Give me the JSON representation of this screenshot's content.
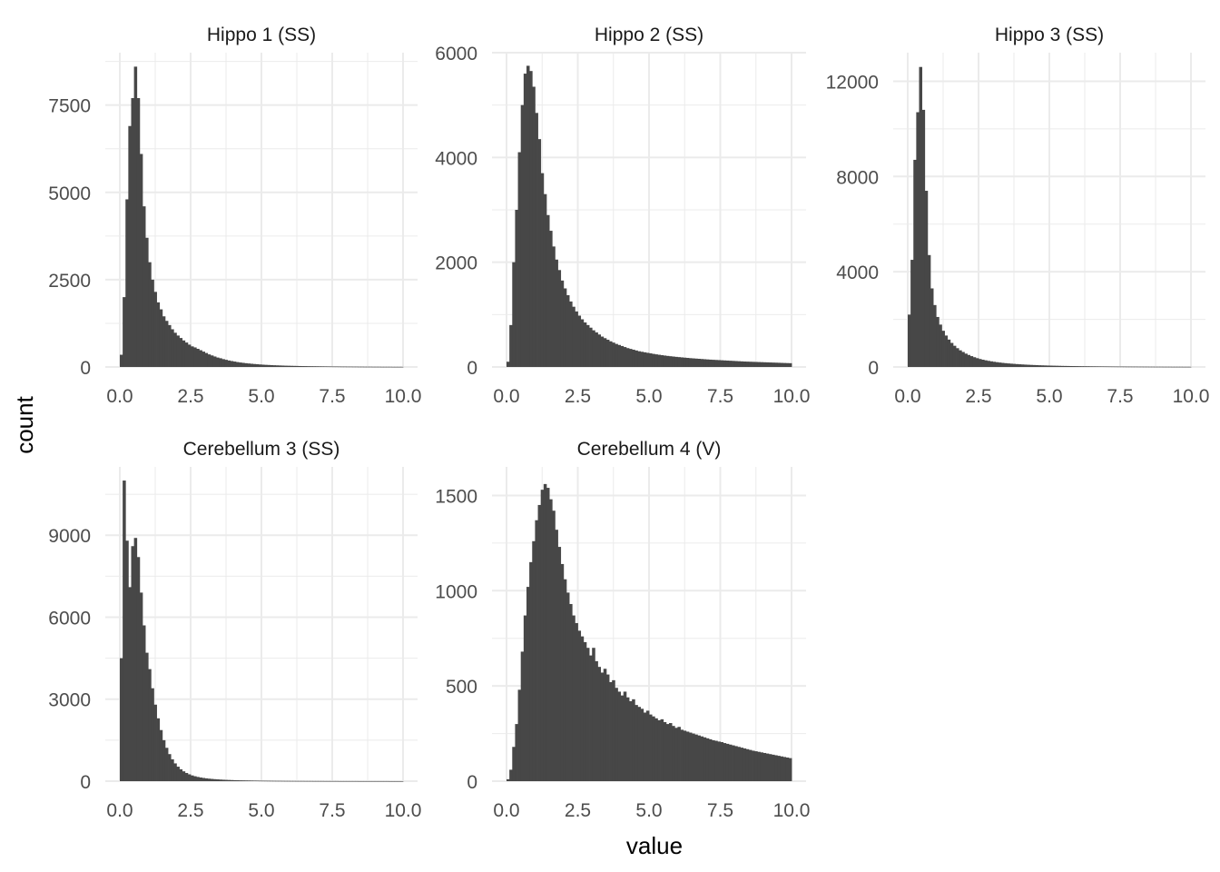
{
  "chart_data": {
    "type": "bar",
    "layout": "facet-wrap",
    "xlabel": "value",
    "ylabel": "count",
    "grid": true,
    "bar_color": "#474747",
    "grid_color": "#ebebeb",
    "facets": [
      {
        "title": "Hippo 1 (SS)",
        "xlim": [
          0,
          10
        ],
        "ylim": [
          0,
          9000
        ],
        "xticks": [
          "0.0",
          "2.5",
          "5.0",
          "7.5",
          "10.0"
        ],
        "yticks": [
          0,
          2500,
          5000,
          7500
        ],
        "ytick_labels": [
          "0",
          "2500",
          "5000",
          "7500"
        ],
        "bin_width": 0.1,
        "values": [
          350,
          2000,
          4800,
          6900,
          7700,
          8600,
          7700,
          6100,
          4600,
          3700,
          3000,
          2500,
          2150,
          1850,
          1650,
          1450,
          1320,
          1200,
          1080,
          980,
          900,
          830,
          760,
          700,
          640,
          590,
          560,
          520,
          480,
          440,
          400,
          360,
          330,
          300,
          270,
          250,
          225,
          205,
          185,
          170,
          155,
          140,
          128,
          118,
          108,
          100,
          92,
          85,
          78,
          72,
          66,
          61,
          57,
          53,
          49,
          46,
          43,
          40,
          37,
          35,
          33,
          31,
          29,
          27,
          25,
          24,
          22,
          21,
          20,
          19,
          18,
          17,
          16,
          15,
          14,
          13,
          13,
          12,
          11,
          11,
          10,
          10,
          9,
          9,
          8,
          8,
          7,
          7,
          7,
          6,
          6,
          6,
          5,
          5,
          5,
          5,
          4,
          4,
          4,
          4
        ]
      },
      {
        "title": "Hippo 2 (SS)",
        "xlim": [
          0,
          10
        ],
        "ylim": [
          0,
          6000
        ],
        "xticks": [
          "0.0",
          "2.5",
          "5.0",
          "7.5",
          "10.0"
        ],
        "yticks": [
          0,
          2000,
          4000,
          6000
        ],
        "ytick_labels": [
          "0",
          "2000",
          "4000",
          "6000"
        ],
        "bin_width": 0.1,
        "values": [
          100,
          800,
          2000,
          3000,
          4100,
          5000,
          5600,
          5750,
          5650,
          5350,
          4850,
          4350,
          3700,
          3300,
          2900,
          2600,
          2300,
          2050,
          1850,
          1650,
          1500,
          1370,
          1250,
          1150,
          1060,
          980,
          910,
          850,
          800,
          750,
          700,
          660,
          620,
          580,
          550,
          520,
          490,
          465,
          440,
          420,
          400,
          380,
          360,
          345,
          330,
          315,
          300,
          290,
          280,
          270,
          260,
          250,
          241,
          233,
          225,
          218,
          211,
          205,
          199,
          193,
          188,
          183,
          178,
          173,
          168,
          164,
          160,
          156,
          152,
          148,
          144,
          140,
          137,
          134,
          131,
          128,
          125,
          122,
          119,
          116,
          113,
          110,
          107,
          104,
          102,
          100,
          98,
          96,
          94,
          92,
          90,
          88,
          86,
          84,
          82,
          80,
          78,
          76,
          74,
          72
        ]
      },
      {
        "title": "Hippo 3 (SS)",
        "xlim": [
          0,
          10
        ],
        "ylim": [
          0,
          13200
        ],
        "xticks": [
          "0.0",
          "2.5",
          "5.0",
          "7.5",
          "10.0"
        ],
        "yticks": [
          0,
          4000,
          8000,
          12000
        ],
        "ytick_labels": [
          "0",
          "4000",
          "8000",
          "12000"
        ],
        "bin_width": 0.1,
        "values": [
          2200,
          4500,
          8700,
          10700,
          12600,
          10800,
          7400,
          4700,
          3300,
          2600,
          2100,
          1780,
          1520,
          1320,
          1150,
          1010,
          890,
          790,
          700,
          630,
          560,
          505,
          455,
          410,
          370,
          335,
          305,
          280,
          257,
          237,
          218,
          201,
          186,
          172,
          160,
          149,
          139,
          130,
          121,
          113,
          106,
          99,
          93,
          87,
          82,
          77,
          72,
          68,
          64,
          60,
          57,
          54,
          51,
          48,
          45,
          43,
          41,
          39,
          37,
          35,
          33,
          31,
          30,
          29,
          27,
          26,
          25,
          24,
          23,
          22,
          21,
          20,
          19,
          18,
          17,
          17,
          16,
          15,
          15,
          14,
          14,
          13,
          13,
          12,
          12,
          11,
          11,
          10,
          10,
          10,
          9,
          9,
          9,
          8,
          8,
          8,
          8,
          7,
          7,
          7
        ]
      },
      {
        "title": "Cerebellum 3 (SS)",
        "xlim": [
          0,
          10
        ],
        "ylim": [
          0,
          11500
        ],
        "xticks": [
          "0.0",
          "2.5",
          "5.0",
          "7.5",
          "10.0"
        ],
        "yticks": [
          0,
          3000,
          6000,
          9000
        ],
        "ytick_labels": [
          "0",
          "3000",
          "6000",
          "9000"
        ],
        "bin_width": 0.1,
        "values": [
          4500,
          11000,
          8800,
          7100,
          8600,
          8900,
          8200,
          6900,
          5700,
          4700,
          4100,
          3400,
          2800,
          2300,
          1870,
          1500,
          1220,
          990,
          800,
          650,
          530,
          435,
          360,
          300,
          250,
          210,
          180,
          155,
          135,
          118,
          104,
          92,
          82,
          73,
          66,
          59,
          53,
          48,
          44,
          40,
          36,
          33,
          30,
          28,
          26,
          24,
          22,
          20,
          19,
          17,
          16,
          15,
          14,
          13,
          12,
          11,
          11,
          10,
          9,
          9,
          8,
          8,
          7,
          7,
          7,
          6,
          6,
          6,
          5,
          5,
          5,
          5,
          4,
          4,
          4,
          4,
          4,
          3,
          3,
          3,
          3,
          3,
          3,
          3,
          2,
          2,
          2,
          2,
          2,
          2,
          2,
          2,
          2,
          2,
          2,
          1,
          1,
          1,
          1,
          1
        ]
      },
      {
        "title": "Cerebellum 4 (V)",
        "xlim": [
          0,
          10
        ],
        "ylim": [
          0,
          1650
        ],
        "xticks": [
          "0.0",
          "2.5",
          "5.0",
          "7.5",
          "10.0"
        ],
        "yticks": [
          0,
          500,
          1000,
          1500
        ],
        "ytick_labels": [
          "0",
          "500",
          "1000",
          "1500"
        ],
        "bin_width": 0.1,
        "values": [
          10,
          60,
          180,
          300,
          480,
          680,
          870,
          1020,
          1150,
          1260,
          1370,
          1450,
          1530,
          1560,
          1540,
          1480,
          1420,
          1320,
          1230,
          1140,
          1060,
          990,
          930,
          870,
          830,
          790,
          760,
          730,
          700,
          660,
          700,
          630,
          600,
          570,
          590,
          560,
          520,
          530,
          490,
          470,
          450,
          470,
          440,
          420,
          430,
          400,
          390,
          380,
          360,
          370,
          350,
          340,
          330,
          320,
          325,
          310,
          300,
          305,
          290,
          280,
          285,
          270,
          265,
          260,
          255,
          250,
          245,
          240,
          235,
          230,
          225,
          220,
          215,
          212,
          208,
          205,
          200,
          196,
          192,
          188,
          184,
          180,
          176,
          172,
          168,
          164,
          160,
          157,
          154,
          151,
          148,
          145,
          142,
          139,
          136,
          133,
          130,
          127,
          124,
          121
        ]
      }
    ]
  }
}
